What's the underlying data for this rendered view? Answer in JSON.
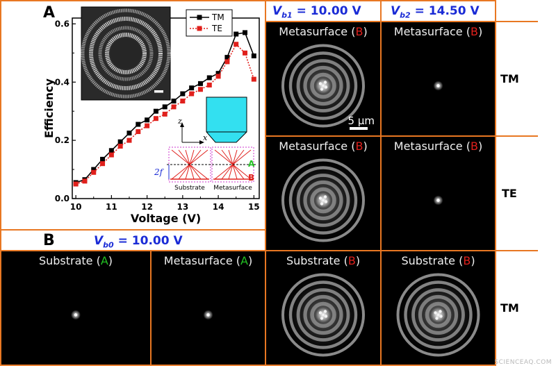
{
  "panels": {
    "a_label": "A",
    "b_label": "B",
    "vb1": {
      "sym": "V",
      "sub": "b1",
      "text": " = 10.00 V"
    },
    "vb2": {
      "sym": "V",
      "sub": "b2",
      "text": " = 14.50 V"
    },
    "vb0": {
      "sym": "V",
      "sub": "b0",
      "text": " = 10.00 V"
    },
    "row_labels": [
      "TM",
      "TE",
      "TM"
    ],
    "scalebar_label": "5 μm"
  },
  "images": [
    {
      "id": "r1c1",
      "caption": "Metasurface",
      "plane": "B",
      "plane_color": "#e0201c",
      "pattern": "rings"
    },
    {
      "id": "r1c2",
      "caption": "Metasurface",
      "plane": "B",
      "plane_color": "#e0201c",
      "pattern": "spot"
    },
    {
      "id": "r2c1",
      "caption": "Metasurface",
      "plane": "B",
      "plane_color": "#e0201c",
      "pattern": "rings"
    },
    {
      "id": "r2c2",
      "caption": "Metasurface",
      "plane": "B",
      "plane_color": "#e0201c",
      "pattern": "spot"
    },
    {
      "id": "b1",
      "caption": "Substrate",
      "plane": "A",
      "plane_color": "#22c022",
      "pattern": "spot"
    },
    {
      "id": "b2",
      "caption": "Metasurface",
      "plane": "A",
      "plane_color": "#22c022",
      "pattern": "spot"
    },
    {
      "id": "r3c1",
      "caption": "Substrate",
      "plane": "B",
      "plane_color": "#e0201c",
      "pattern": "rings"
    },
    {
      "id": "r3c2",
      "caption": "Substrate",
      "plane": "B",
      "plane_color": "#e0201c",
      "pattern": "rings"
    }
  ],
  "chart_data": {
    "type": "line",
    "xlabel": "Voltage (V)",
    "ylabel": "Efficiency",
    "xlim": [
      9.9,
      15.15
    ],
    "ylim": [
      0.0,
      0.62
    ],
    "xticks": [
      10,
      11,
      12,
      13,
      14,
      15
    ],
    "yticks": [
      0.0,
      0.2,
      0.4,
      0.6
    ],
    "ytick_labels": [
      "0.0",
      "0.2",
      "0.4",
      "0.6"
    ],
    "legend_position": "top-right",
    "x": [
      10.0,
      10.25,
      10.5,
      10.75,
      11.0,
      11.25,
      11.5,
      11.75,
      12.0,
      12.25,
      12.5,
      12.75,
      13.0,
      13.25,
      13.5,
      13.75,
      14.0,
      14.25,
      14.5,
      14.75,
      15.0
    ],
    "series": [
      {
        "name": "TM",
        "color": "#000000",
        "dash": "solid",
        "values": [
          0.055,
          0.065,
          0.1,
          0.135,
          0.165,
          0.195,
          0.225,
          0.255,
          0.27,
          0.3,
          0.315,
          0.335,
          0.36,
          0.38,
          0.395,
          0.415,
          0.43,
          0.485,
          0.565,
          0.57,
          0.49
        ]
      },
      {
        "name": "TE",
        "color": "#e0201c",
        "dash": "dotted",
        "values": [
          0.05,
          0.06,
          0.09,
          0.12,
          0.15,
          0.18,
          0.2,
          0.23,
          0.25,
          0.275,
          0.29,
          0.315,
          0.335,
          0.36,
          0.375,
          0.39,
          0.42,
          0.47,
          0.53,
          0.5,
          0.41
        ]
      }
    ]
  },
  "inset_schematic": {
    "axis_z": "z",
    "axis_x": "x",
    "dim_label": "2f",
    "plane_a": "A",
    "plane_b": "B",
    "label_left": "Substrate",
    "label_right": "Metasurface",
    "color_a": "#22c022",
    "color_b": "#e0201c",
    "objective_color": "#33e0f0"
  },
  "credit": "SCIENCEAQ.COM"
}
